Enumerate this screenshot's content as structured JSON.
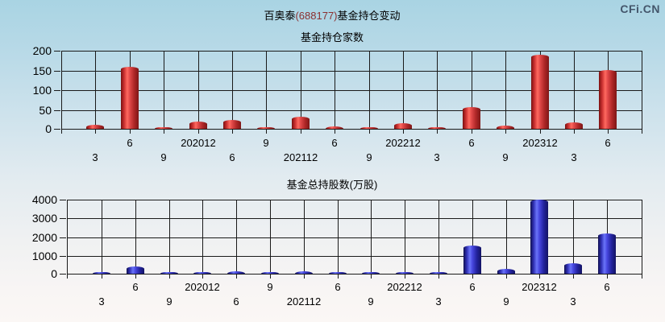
{
  "page": {
    "title_stock": "百奥泰",
    "title_code": "(688177)",
    "title_rest": "基金持仓变动",
    "watermark": "CFi.CN"
  },
  "colors": {
    "background_top": "#a9d4e3",
    "background_bottom": "#fbf7f5",
    "gridline": "#1a1a1a",
    "bar_red": "#e04848",
    "bar_blue": "#4848e0",
    "title_code_red": "#8b3030",
    "watermark_color": "#44566b"
  },
  "chart_data": [
    {
      "type": "bar",
      "title": "基金持仓家数",
      "categories": [
        "3",
        "6",
        "9",
        "202012",
        "6",
        "9",
        "202112",
        "6",
        "9",
        "202212",
        "3",
        "6",
        "9",
        "202312",
        "3",
        "6"
      ],
      "values": [
        10,
        158,
        3,
        18,
        23,
        2,
        30,
        7,
        2,
        14,
        2,
        56,
        9,
        190,
        17,
        151
      ],
      "ylim": [
        0,
        200
      ],
      "yticks": [
        0,
        50,
        100,
        150,
        200
      ],
      "xlabel": "",
      "ylabel": "",
      "series_color": "red",
      "grid": true,
      "legend": false,
      "x_label_layout": "alternating two rows (odd index upper row, even index lower row)"
    },
    {
      "type": "bar",
      "title": "基金总持股数(万股)",
      "categories": [
        "3",
        "6",
        "9",
        "202012",
        "6",
        "9",
        "202112",
        "6",
        "9",
        "202212",
        "3",
        "6",
        "9",
        "202312",
        "3",
        "6"
      ],
      "values": [
        30,
        370,
        50,
        60,
        110,
        40,
        150,
        30,
        40,
        60,
        40,
        1530,
        260,
        3990,
        580,
        2170
      ],
      "ylim": [
        0,
        4000
      ],
      "yticks": [
        0,
        1000,
        2000,
        3000,
        4000
      ],
      "xlabel": "",
      "ylabel": "",
      "series_color": "blue",
      "grid": true,
      "legend": false,
      "x_label_layout": "alternating two rows (odd index upper row, even index lower row)"
    }
  ]
}
